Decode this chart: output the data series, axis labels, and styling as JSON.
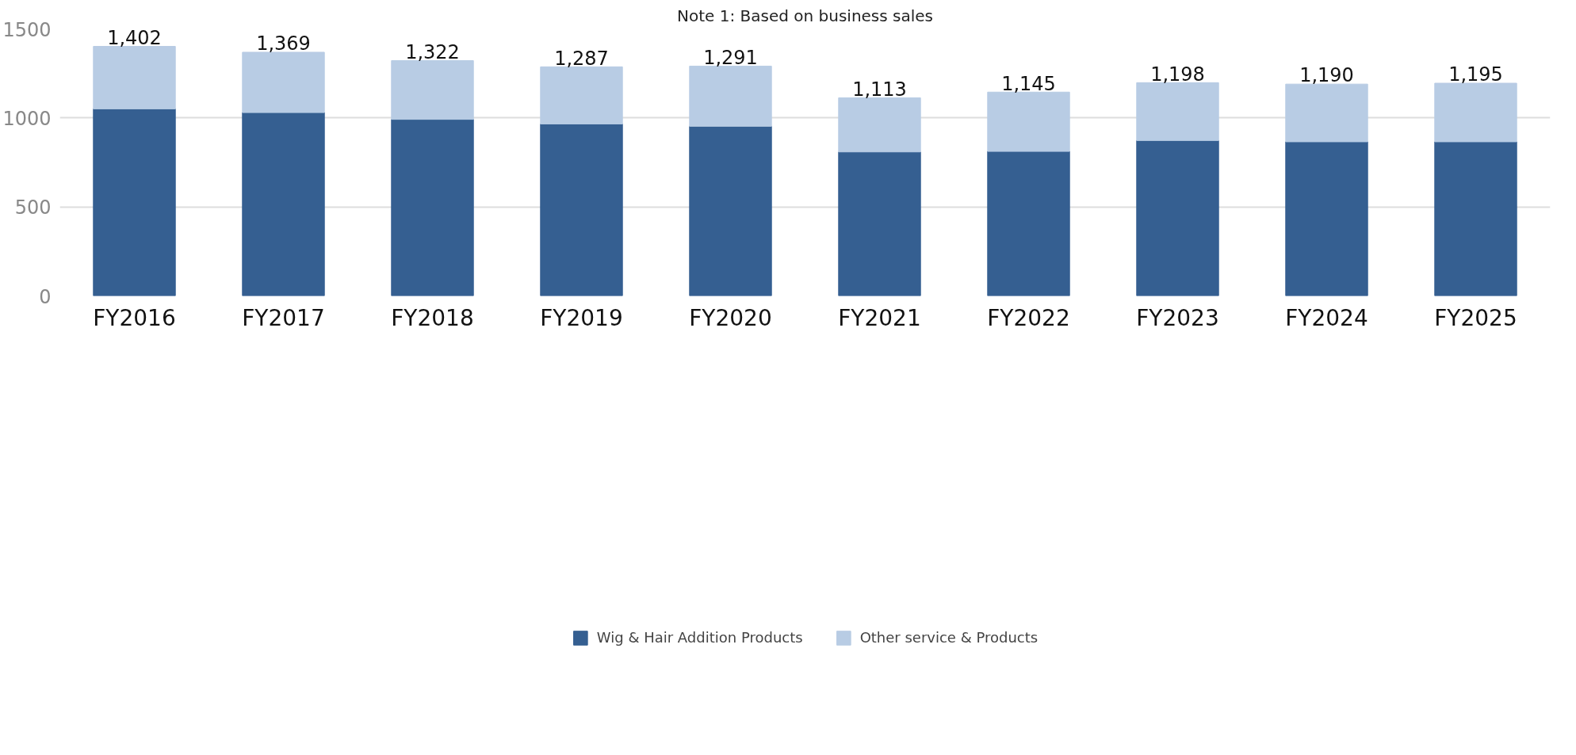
{
  "chart_data": {
    "type": "bar",
    "stacked": true,
    "categories": [
      "FY2016",
      "FY2017",
      "FY2018",
      "FY2019",
      "FY2020",
      "FY2021",
      "FY2022",
      "FY2023",
      "FY2024",
      "FY2025"
    ],
    "series": [
      {
        "name": "Wig & Hair Addition Products",
        "color": "#355f91",
        "values": [
          1051,
          1030,
          992,
          966,
          953,
          809,
          812,
          873,
          866,
          866
        ]
      },
      {
        "name": "Other service & Products",
        "color": "#b8cce4",
        "values": [
          351,
          339,
          330,
          321,
          338,
          304,
          333,
          325,
          324,
          329
        ]
      }
    ],
    "totals": [
      "1,402",
      "1,369",
      "1,322",
      "1,287",
      "1,291",
      "1,113",
      "1,145",
      "1,198",
      "1,190",
      "1,195"
    ],
    "ylim": [
      0,
      1500
    ],
    "yticks": [
      0,
      500,
      1000,
      1500
    ],
    "grid": "y",
    "legend": "bottom",
    "annotations": [
      "Note 1: Based on business sales"
    ]
  }
}
